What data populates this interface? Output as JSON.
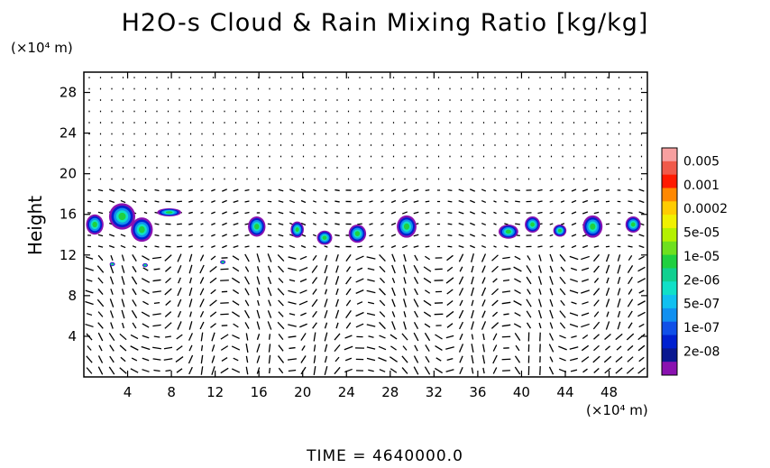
{
  "chart_data": {
    "type": "heatmap",
    "title": "H2O-s Cloud & Rain Mixing Ratio [kg/kg]",
    "ylabel": "Height",
    "xlabel": "",
    "y_unit_label": "(×10⁴ m)",
    "x_unit_label": "(×10⁴ m)",
    "xlim": [
      0,
      51.5
    ],
    "ylim": [
      0,
      30
    ],
    "x_ticks": [
      4,
      8,
      12,
      16,
      20,
      24,
      28,
      32,
      36,
      40,
      44,
      48
    ],
    "y_ticks": [
      4,
      8,
      12,
      16,
      20,
      24,
      28
    ],
    "colorbar": {
      "labels": [
        "0.005",
        "0.001",
        "0.0002",
        "5e-05",
        "1e-05",
        "2e-06",
        "5e-07",
        "1e-07",
        "2e-08"
      ],
      "colors": [
        "#f7a0a0",
        "#f05a4a",
        "#ff1a00",
        "#ff8800",
        "#ffcc00",
        "#f0f000",
        "#b4f000",
        "#6ee01e",
        "#20d040",
        "#10d090",
        "#10e0c8",
        "#10c0f0",
        "#1090f0",
        "#1050e8",
        "#0020d0",
        "#0a1890",
        "#8a12b0"
      ]
    },
    "cloud_band": {
      "y_min": 13,
      "y_max": 17
    },
    "cells": [
      {
        "x": 1,
        "y": 15,
        "w": 1.6,
        "h": 2.0
      },
      {
        "x": 3.5,
        "y": 15.8,
        "w": 2.4,
        "h": 2.6
      },
      {
        "x": 5.3,
        "y": 14.5,
        "w": 2.0,
        "h": 2.4
      },
      {
        "x": 7.8,
        "y": 16.2,
        "w": 2.2,
        "h": 0.8
      },
      {
        "x": 2.6,
        "y": 11.1,
        "w": 0.5,
        "h": 0.4
      },
      {
        "x": 5.6,
        "y": 11.0,
        "w": 0.5,
        "h": 0.4
      },
      {
        "x": 12.7,
        "y": 11.3,
        "w": 0.5,
        "h": 0.4
      },
      {
        "x": 15.8,
        "y": 14.8,
        "w": 1.6,
        "h": 2.0
      },
      {
        "x": 19.5,
        "y": 14.5,
        "w": 1.2,
        "h": 1.6
      },
      {
        "x": 22.0,
        "y": 13.7,
        "w": 1.4,
        "h": 1.4
      },
      {
        "x": 25.0,
        "y": 14.1,
        "w": 1.6,
        "h": 1.8
      },
      {
        "x": 29.5,
        "y": 14.8,
        "w": 1.8,
        "h": 2.2
      },
      {
        "x": 38.8,
        "y": 14.3,
        "w": 1.8,
        "h": 1.4
      },
      {
        "x": 41.0,
        "y": 15.0,
        "w": 1.4,
        "h": 1.6
      },
      {
        "x": 43.5,
        "y": 14.4,
        "w": 1.2,
        "h": 1.2
      },
      {
        "x": 46.5,
        "y": 14.8,
        "w": 1.8,
        "h": 2.2
      },
      {
        "x": 50.2,
        "y": 15.0,
        "w": 1.4,
        "h": 1.6
      }
    ],
    "time_label": "TIME  =  4640000.0"
  }
}
